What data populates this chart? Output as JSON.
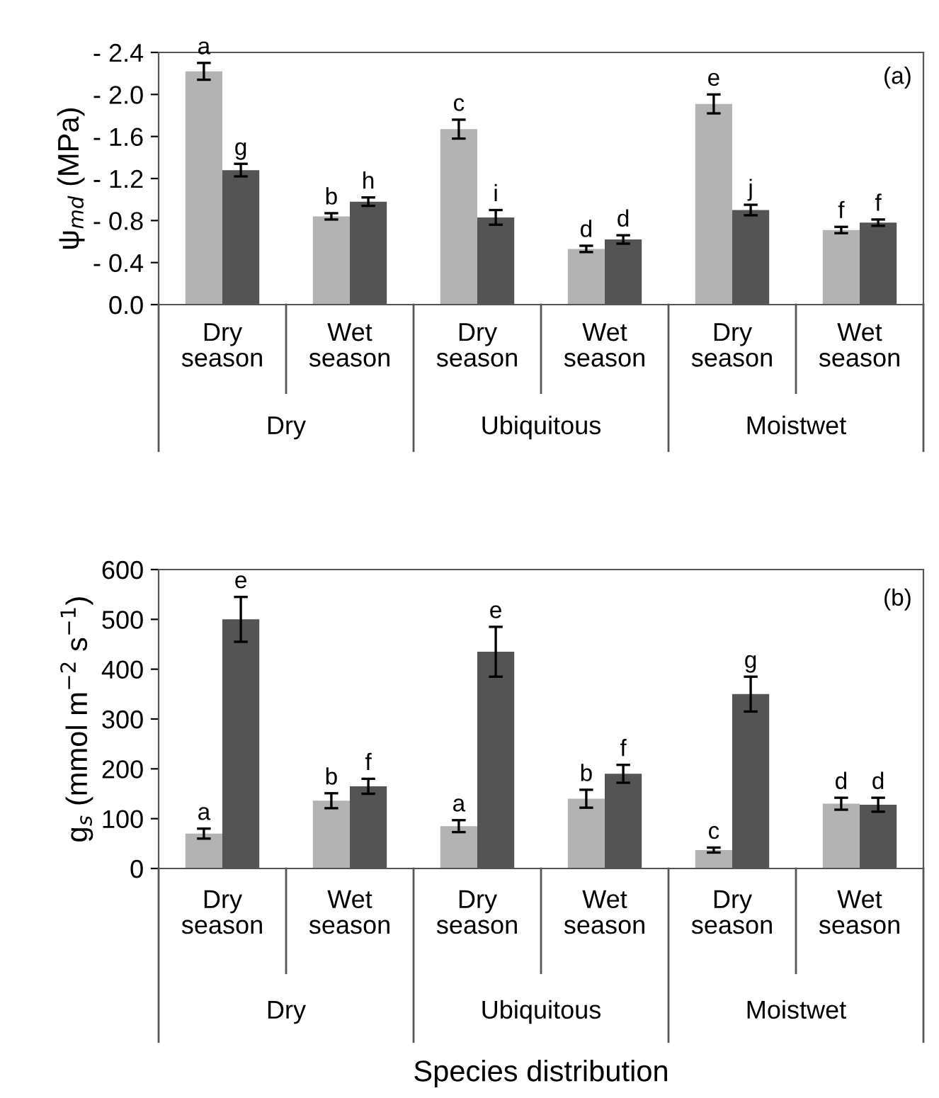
{
  "chart_data": [
    {
      "type": "bar",
      "ylabel": "ψ$_{md}$ (MPa)",
      "categories": [
        "Dry season",
        "Wet season",
        "Dry season",
        "Wet season",
        "Dry season",
        "Wet season"
      ],
      "series": [
        {
          "color": "#b3b3b3",
          "values": [
            -2.22,
            -0.84,
            -1.67,
            -0.53,
            -1.91,
            -0.71
          ],
          "errors": [
            0.08,
            0.03,
            0.09,
            0.03,
            0.09,
            0.03
          ],
          "value_labels": [
            "a",
            "b",
            "c",
            "d",
            "e",
            "f"
          ]
        },
        {
          "color": "#545454",
          "values": [
            -1.28,
            -0.98,
            -0.83,
            -0.62,
            -0.9,
            -0.78
          ],
          "errors": [
            0.06,
            0.04,
            0.07,
            0.04,
            0.05,
            0.03
          ],
          "value_labels": [
            "g",
            "h",
            "i",
            "d",
            "j",
            "f"
          ]
        }
      ],
      "ylim": [
        0,
        -2.4
      ],
      "yticks": [
        {
          "value": 0,
          "label": "0.0"
        },
        {
          "value": -0.4,
          "label": "- 0.4"
        },
        {
          "value": -0.8,
          "label": "- 0.8"
        },
        {
          "value": -1.2,
          "label": "- 1.2"
        },
        {
          "value": -1.6,
          "label": "- 1.6"
        },
        {
          "value": -2.0,
          "label": "- 2.0"
        },
        {
          "value": -2.4,
          "label": "- 2.4"
        }
      ],
      "grid": false,
      "annotations": [
        "(a)",
        "Dry",
        "Ubiquitous",
        "Moistwet"
      ]
    },
    {
      "type": "bar",
      "ylabel": "g$_{s}$ (mmol m$^{−2}$ s$^{−1}$)",
      "xlabel": "Species distribution",
      "categories": [
        "Dry season",
        "Wet season",
        "Dry season",
        "Wet season",
        "Dry season",
        "Wet season"
      ],
      "series": [
        {
          "color": "#b3b3b3",
          "values": [
            70,
            136,
            85,
            140,
            37,
            130
          ],
          "errors": [
            10,
            15,
            12,
            18,
            5,
            12
          ],
          "value_labels": [
            "a",
            "b",
            "a",
            "b",
            "c",
            "d"
          ]
        },
        {
          "color": "#545454",
          "values": [
            500,
            165,
            435,
            190,
            350,
            128
          ],
          "errors": [
            45,
            15,
            50,
            18,
            35,
            14
          ],
          "value_labels": [
            "e",
            "f",
            "e",
            "f",
            "g",
            "d"
          ]
        }
      ],
      "ylim": [
        0,
        600
      ],
      "yticks": [
        0,
        100,
        200,
        300,
        400,
        500,
        600
      ],
      "grid": false,
      "annotations": [
        "(b)",
        "Dry",
        "Ubiquitous",
        "Moistwet"
      ]
    }
  ]
}
